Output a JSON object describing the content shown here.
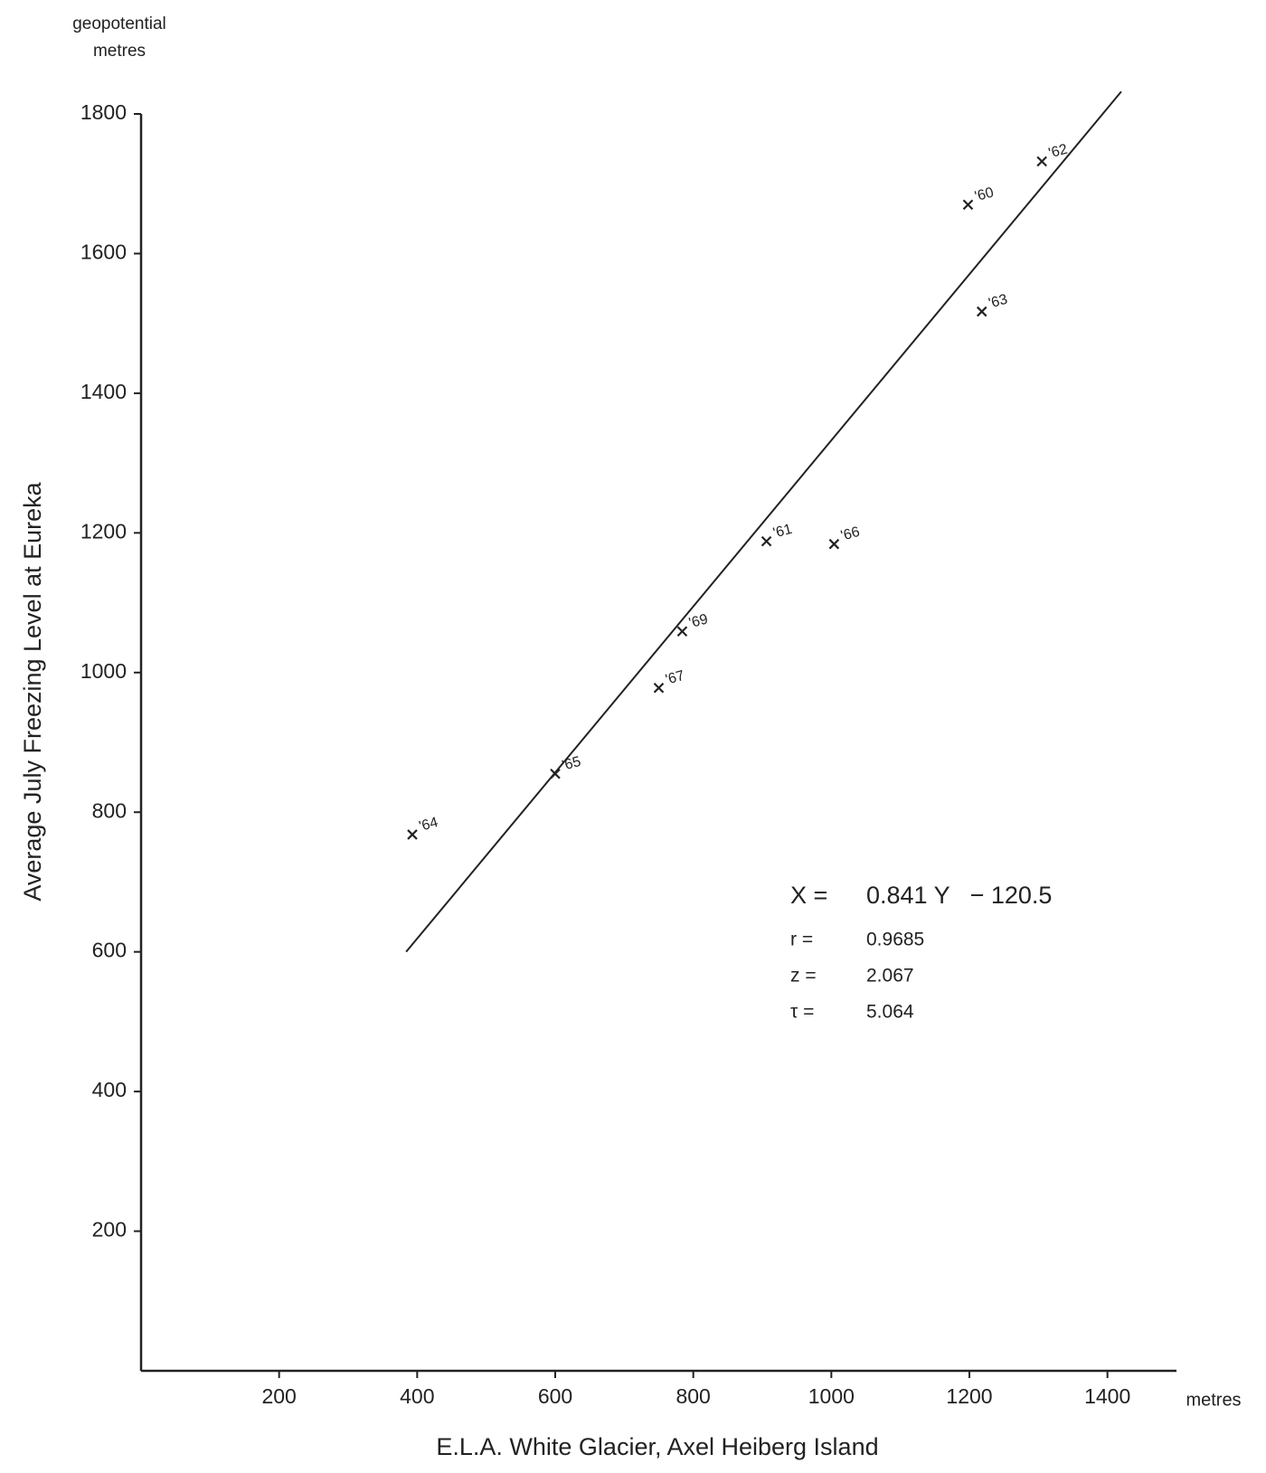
{
  "chart_data": {
    "type": "scatter",
    "y_unit_label": [
      "geopotential",
      "metres"
    ],
    "y_label": "Average July Freezing Level at Eureka",
    "x_unit_label": "metres",
    "x_label": "E.L.A. White Glacier, Axel Heiberg Island",
    "x": [
      393,
      600,
      750,
      784,
      906,
      1004,
      1198,
      1305,
      1218
    ],
    "values": [
      768,
      855,
      978,
      1059,
      1188,
      1184,
      1670,
      1732,
      1517
    ],
    "point_labels": [
      "'64",
      "'65",
      "'67",
      "'69",
      "'61",
      "'66",
      "'60",
      "'62",
      "'63"
    ],
    "color": "#222222",
    "fit": {
      "x": [
        384,
        1420
      ],
      "values": [
        600,
        1832
      ]
    },
    "annotations": [
      {
        "label": "X =",
        "text": "0.841 Y   − 120.5"
      },
      {
        "label": "r =",
        "text": "0.9685"
      },
      {
        "label": "z =",
        "text": "2.067"
      },
      {
        "label": "τ =",
        "text": "5.064"
      }
    ],
    "xlim": [
      0,
      1500
    ],
    "ylim": [
      0,
      1800
    ],
    "xticks": [
      200,
      400,
      600,
      800,
      1000,
      1200,
      1400
    ],
    "yticks": [
      200,
      400,
      600,
      800,
      1000,
      1200,
      1400,
      1600,
      1800
    ],
    "grid": false
  }
}
